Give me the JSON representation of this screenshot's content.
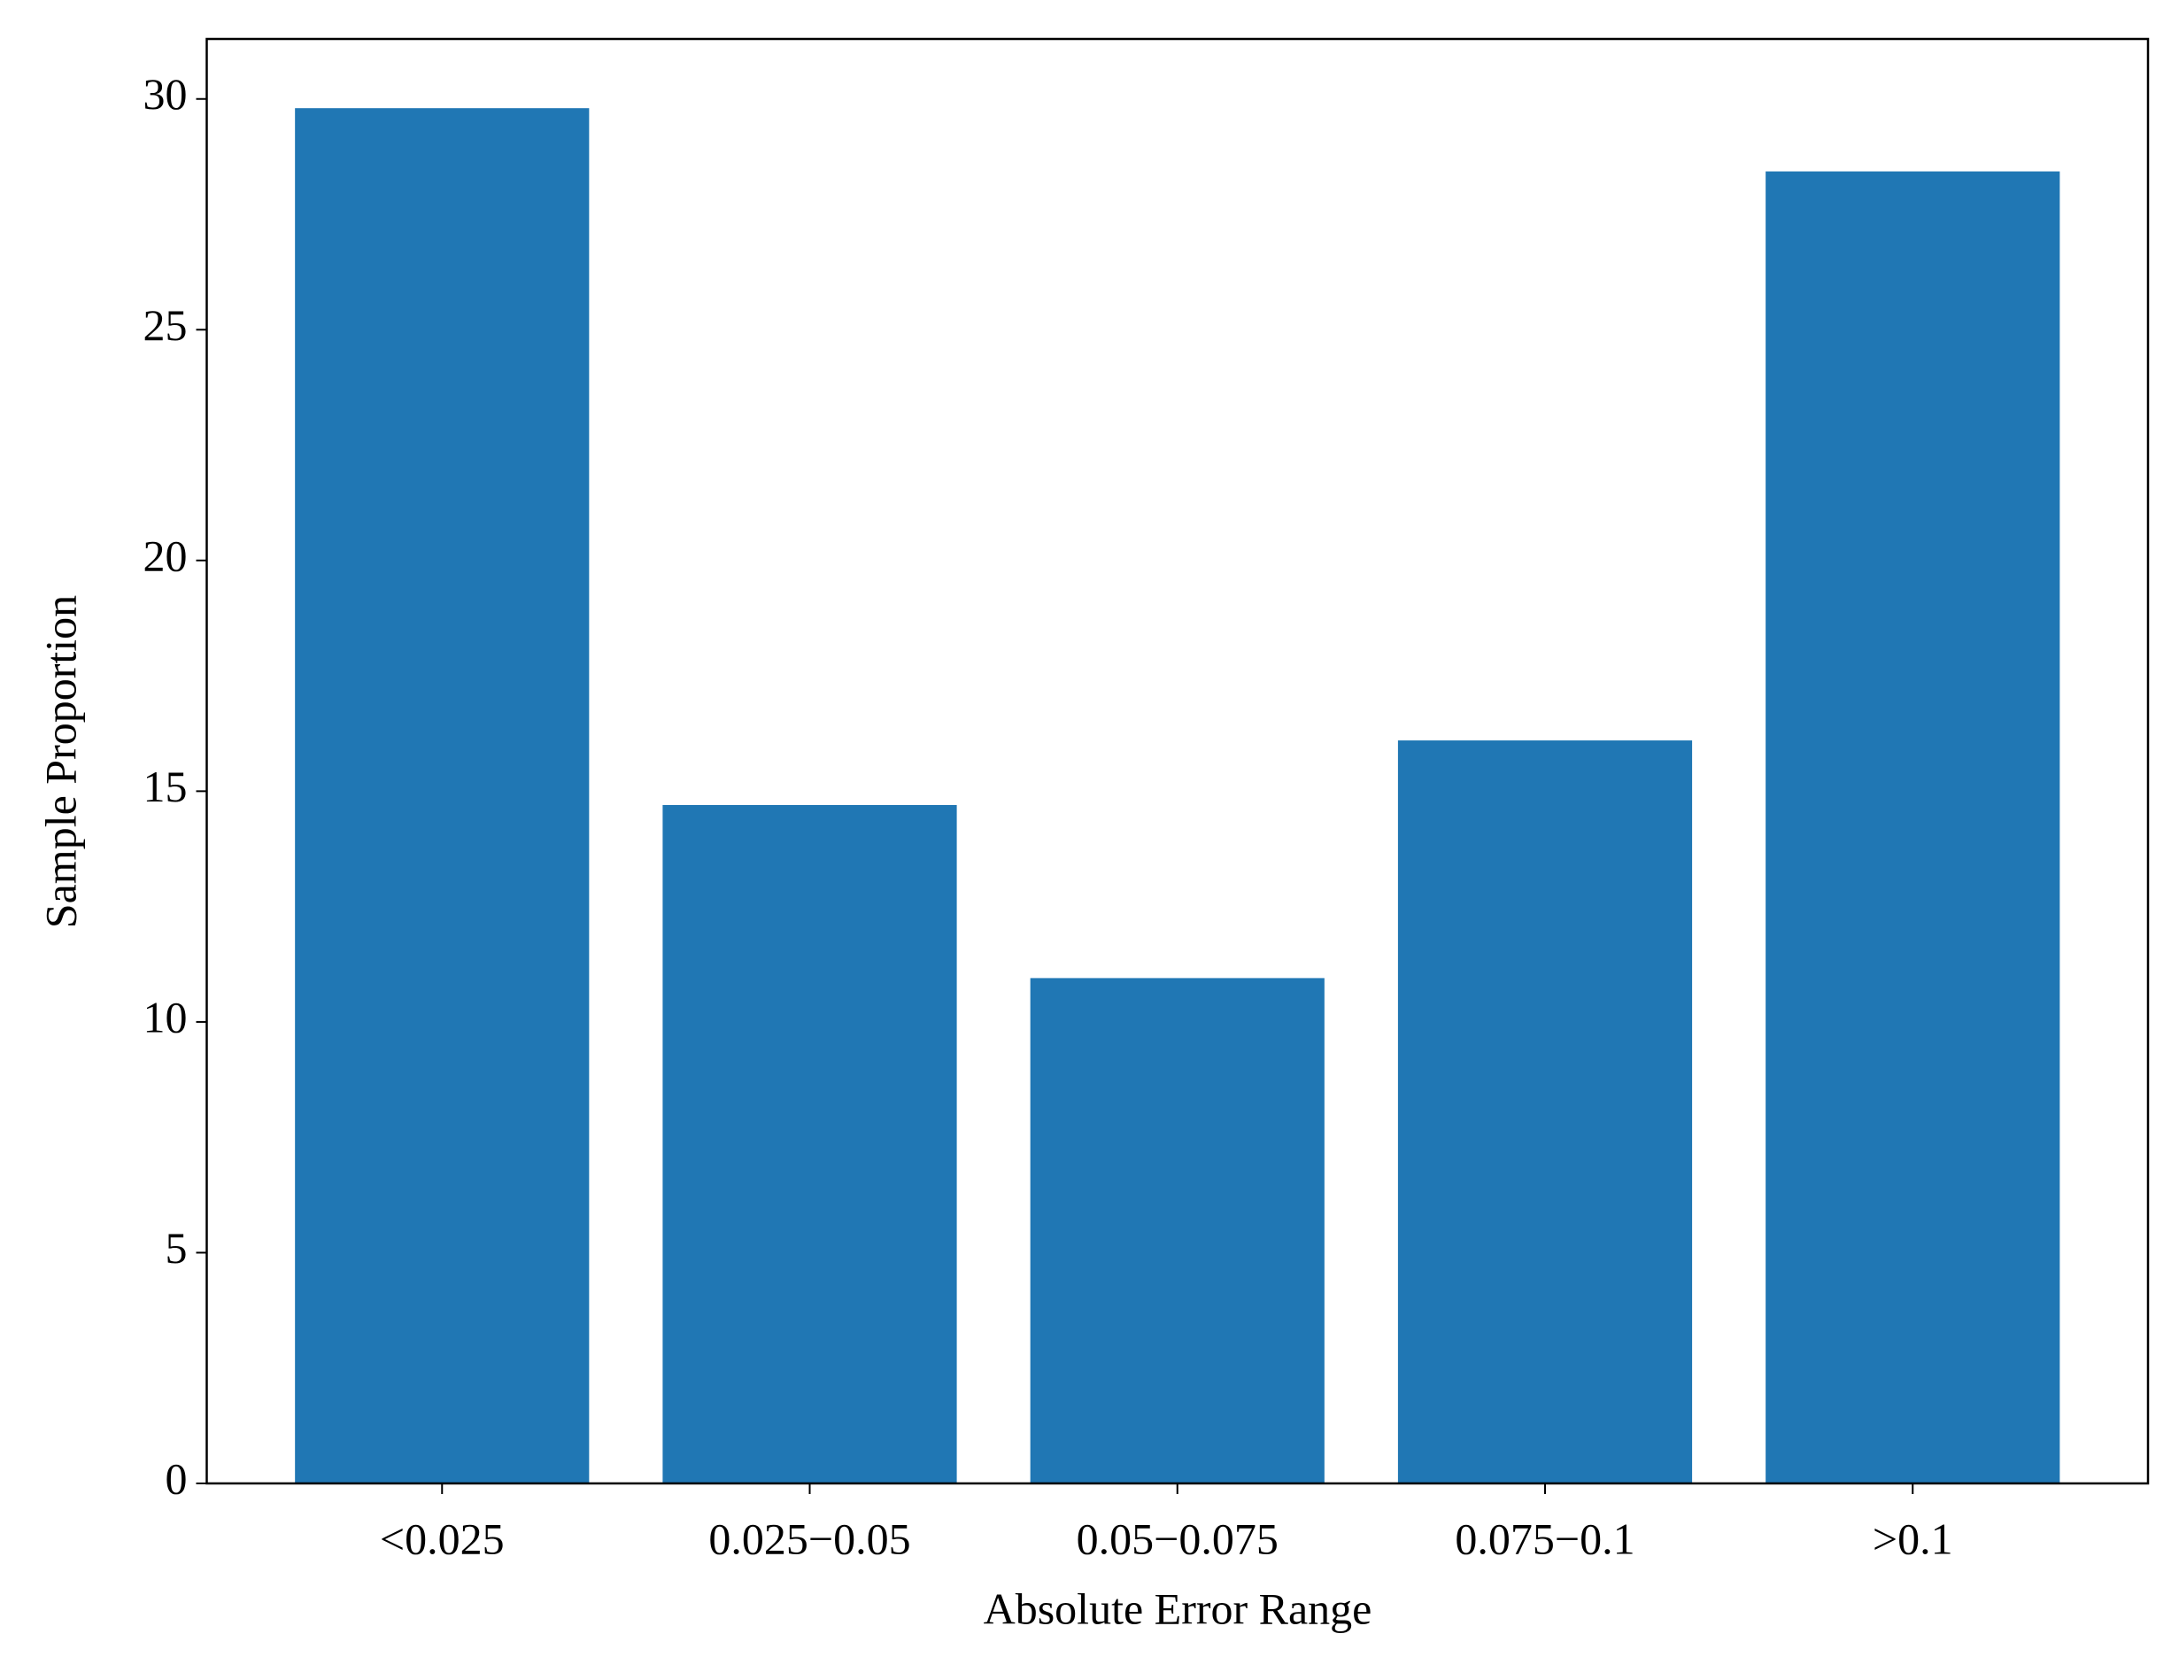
{
  "chart_data": {
    "type": "bar",
    "categories": [
      "<0.025",
      "0.025−0.05",
      "0.05−0.075",
      "0.075−0.1",
      ">0.1"
    ],
    "values": [
      29.8,
      14.7,
      10.95,
      16.1,
      28.43
    ],
    "color": "#2077b4",
    "x_label": "Absolute Error Range",
    "y_label": "Sample Proportion",
    "ylim": [
      0,
      31.3
    ],
    "yticks": [
      0,
      5,
      10,
      15,
      20,
      25,
      30
    ],
    "grid": false
  }
}
